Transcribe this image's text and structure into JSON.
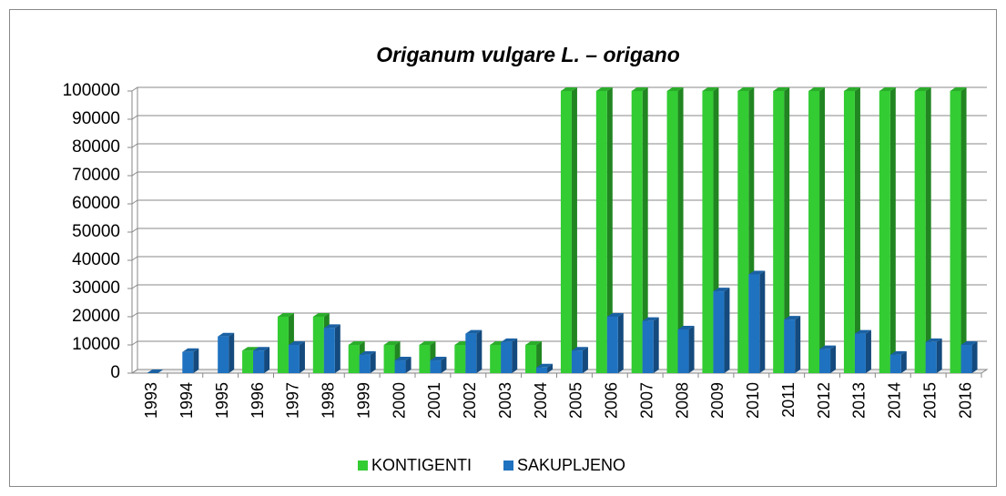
{
  "chart_data": {
    "type": "bar",
    "title": "Origanum vulgare L. – origano",
    "categories": [
      "1993",
      "1994",
      "1995",
      "1996",
      "1997",
      "1998",
      "1999",
      "2000",
      "2001",
      "2002",
      "2003",
      "2004",
      "2005",
      "2006",
      "2007",
      "2008",
      "2009",
      "2010",
      "2011",
      "2012",
      "2013",
      "2014",
      "2015",
      "2016"
    ],
    "series": [
      {
        "name": "KONTIGENTI",
        "color": "#33cc33",
        "values": [
          null,
          null,
          null,
          8000,
          20000,
          20000,
          10000,
          10000,
          10000,
          10000,
          10000,
          10000,
          100000,
          100000,
          100000,
          100000,
          100000,
          100000,
          100000,
          100000,
          100000,
          100000,
          100000,
          100000
        ]
      },
      {
        "name": "SAKUPLJENO",
        "color": "#1f72c0",
        "values": [
          0,
          7500,
          13000,
          8000,
          10000,
          16000,
          6500,
          4500,
          4500,
          14000,
          11000,
          2000,
          8000,
          20000,
          18500,
          15500,
          29000,
          35000,
          19000,
          8500,
          14000,
          6500,
          11000,
          10000
        ]
      }
    ],
    "ylim": [
      0,
      100000
    ],
    "yticks": [
      0,
      10000,
      20000,
      30000,
      40000,
      50000,
      60000,
      70000,
      80000,
      90000,
      100000
    ],
    "grid": true,
    "legend": "bottom"
  }
}
